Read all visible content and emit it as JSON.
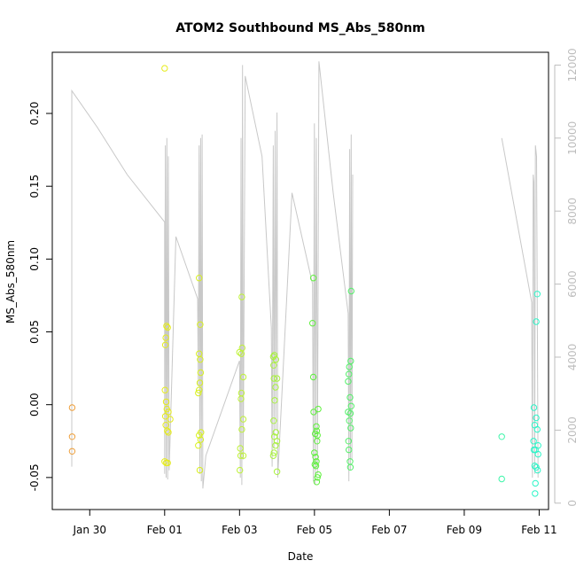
{
  "chart_data": {
    "type": "scatter",
    "title": "ATOM2 Southbound MS_Abs_580nm",
    "xlabel": "Date",
    "ylabel": "MS_Abs_580nm",
    "grid": false,
    "xlim": [
      "Jan 29",
      "Feb 11.25"
    ],
    "ylim": [
      -0.072,
      0.242
    ],
    "y2lim": [
      -175,
      12350
    ],
    "x_ticks": [
      {
        "value": 30,
        "label": "Jan 30"
      },
      {
        "value": 32,
        "label": "Feb 01"
      },
      {
        "value": 34,
        "label": "Feb 03"
      },
      {
        "value": 36,
        "label": "Feb 05"
      },
      {
        "value": 38,
        "label": "Feb 07"
      },
      {
        "value": 40,
        "label": "Feb 09"
      },
      {
        "value": 42,
        "label": "Feb 11"
      }
    ],
    "y_ticks": [
      {
        "value": -0.05,
        "label": "-0.05"
      },
      {
        "value": 0.0,
        "label": "0.00"
      },
      {
        "value": 0.05,
        "label": "0.05"
      },
      {
        "value": 0.1,
        "label": "0.10"
      },
      {
        "value": 0.15,
        "label": "0.15"
      },
      {
        "value": 0.2,
        "label": "0.20"
      }
    ],
    "y2_ticks": [
      {
        "value": 0,
        "label": "0"
      },
      {
        "value": 2000,
        "label": "2000"
      },
      {
        "value": 4000,
        "label": "4000"
      },
      {
        "value": 6000,
        "label": "6000"
      },
      {
        "value": 8000,
        "label": "8000"
      },
      {
        "value": 10000,
        "label": "10000"
      },
      {
        "value": 12000,
        "label": "12000"
      }
    ],
    "colors": {
      "secondary_line": "#c8c8c8",
      "axis": "#000000",
      "secondary_axis": "#bdbdbd",
      "early": "#ff8800",
      "mid": "#d4ff00",
      "late": "#00ffcc"
    },
    "series": [
      {
        "values": [
          {
            "x": 29.53,
            "y": -0.002,
            "color": "#ee9f3a"
          },
          {
            "x": 29.53,
            "y": -0.022,
            "color": "#ee9f3a"
          },
          {
            "x": 29.53,
            "y": -0.032,
            "color": "#ee9f3a"
          },
          {
            "x": 32.0,
            "y": 0.231,
            "color": "#e6ec1c"
          },
          {
            "x": 32.05,
            "y": 0.054,
            "color": "#e6ec1c"
          },
          {
            "x": 32.08,
            "y": 0.053,
            "color": "#e6ec1c"
          },
          {
            "x": 32.03,
            "y": 0.046,
            "color": "#e6ec1c"
          },
          {
            "x": 32.02,
            "y": 0.041,
            "color": "#e6ec1c"
          },
          {
            "x": 32.01,
            "y": 0.01,
            "color": "#e6ec1c"
          },
          {
            "x": 32.04,
            "y": 0.002,
            "color": "#e6ec1c"
          },
          {
            "x": 32.06,
            "y": -0.003,
            "color": "#e6ec1c"
          },
          {
            "x": 32.1,
            "y": -0.005,
            "color": "#e6ec1c"
          },
          {
            "x": 32.02,
            "y": -0.008,
            "color": "#e6ec1c"
          },
          {
            "x": 32.15,
            "y": -0.01,
            "color": "#e6ec1c"
          },
          {
            "x": 32.03,
            "y": -0.014,
            "color": "#e6ec1c"
          },
          {
            "x": 32.07,
            "y": -0.018,
            "color": "#e6ec1c"
          },
          {
            "x": 32.1,
            "y": -0.019,
            "color": "#e6ec1c"
          },
          {
            "x": 32.0,
            "y": -0.039,
            "color": "#e6ec1c"
          },
          {
            "x": 32.04,
            "y": -0.04,
            "color": "#e6ec1c"
          },
          {
            "x": 32.08,
            "y": -0.04,
            "color": "#e6ec1c"
          },
          {
            "x": 32.92,
            "y": 0.087,
            "color": "#d8f01e"
          },
          {
            "x": 32.95,
            "y": 0.055,
            "color": "#d8f01e"
          },
          {
            "x": 32.92,
            "y": 0.035,
            "color": "#d8f01e"
          },
          {
            "x": 32.95,
            "y": 0.031,
            "color": "#d8f01e"
          },
          {
            "x": 32.96,
            "y": 0.022,
            "color": "#d8f01e"
          },
          {
            "x": 32.94,
            "y": 0.015,
            "color": "#d8f01e"
          },
          {
            "x": 32.92,
            "y": 0.01,
            "color": "#d8f01e"
          },
          {
            "x": 32.9,
            "y": 0.008,
            "color": "#d8f01e"
          },
          {
            "x": 32.97,
            "y": -0.019,
            "color": "#d8f01e"
          },
          {
            "x": 32.92,
            "y": -0.021,
            "color": "#d8f01e"
          },
          {
            "x": 32.96,
            "y": -0.024,
            "color": "#d8f01e"
          },
          {
            "x": 32.9,
            "y": -0.028,
            "color": "#d8f01e"
          },
          {
            "x": 32.94,
            "y": -0.045,
            "color": "#d8f01e"
          },
          {
            "x": 34.06,
            "y": 0.074,
            "color": "#bff23a"
          },
          {
            "x": 34.07,
            "y": 0.039,
            "color": "#bff23a"
          },
          {
            "x": 34.0,
            "y": 0.036,
            "color": "#bff23a"
          },
          {
            "x": 34.05,
            "y": 0.035,
            "color": "#bff23a"
          },
          {
            "x": 34.1,
            "y": 0.019,
            "color": "#bff23a"
          },
          {
            "x": 34.05,
            "y": 0.008,
            "color": "#bff23a"
          },
          {
            "x": 34.04,
            "y": 0.004,
            "color": "#bff23a"
          },
          {
            "x": 34.1,
            "y": -0.01,
            "color": "#bff23a"
          },
          {
            "x": 34.06,
            "y": -0.017,
            "color": "#bff23a"
          },
          {
            "x": 34.02,
            "y": -0.03,
            "color": "#bff23a"
          },
          {
            "x": 34.03,
            "y": -0.035,
            "color": "#bff23a"
          },
          {
            "x": 34.1,
            "y": -0.035,
            "color": "#bff23a"
          },
          {
            "x": 34.01,
            "y": -0.045,
            "color": "#bff23a"
          },
          {
            "x": 34.9,
            "y": 0.033,
            "color": "#a8f23d"
          },
          {
            "x": 34.93,
            "y": 0.034,
            "color": "#a8f23d"
          },
          {
            "x": 34.97,
            "y": 0.031,
            "color": "#a8f23d"
          },
          {
            "x": 34.91,
            "y": 0.027,
            "color": "#a8f23d"
          },
          {
            "x": 34.92,
            "y": 0.018,
            "color": "#a8f23d"
          },
          {
            "x": 35.0,
            "y": 0.018,
            "color": "#a8f23d"
          },
          {
            "x": 34.96,
            "y": 0.012,
            "color": "#a8f23d"
          },
          {
            "x": 34.94,
            "y": 0.003,
            "color": "#a8f23d"
          },
          {
            "x": 34.91,
            "y": -0.011,
            "color": "#a8f23d"
          },
          {
            "x": 34.97,
            "y": -0.019,
            "color": "#a8f23d"
          },
          {
            "x": 34.93,
            "y": -0.022,
            "color": "#a8f23d"
          },
          {
            "x": 35.0,
            "y": -0.025,
            "color": "#a8f23d"
          },
          {
            "x": 34.96,
            "y": -0.028,
            "color": "#a8f23d"
          },
          {
            "x": 34.92,
            "y": -0.033,
            "color": "#a8f23d"
          },
          {
            "x": 34.9,
            "y": -0.035,
            "color": "#a8f23d"
          },
          {
            "x": 35.0,
            "y": -0.046,
            "color": "#a8f23d"
          },
          {
            "x": 35.97,
            "y": 0.087,
            "color": "#5ef03c"
          },
          {
            "x": 35.95,
            "y": 0.056,
            "color": "#5ef03c"
          },
          {
            "x": 35.97,
            "y": 0.019,
            "color": "#5ef03c"
          },
          {
            "x": 36.1,
            "y": -0.003,
            "color": "#5ef03c"
          },
          {
            "x": 35.98,
            "y": -0.005,
            "color": "#5ef03c"
          },
          {
            "x": 36.05,
            "y": -0.015,
            "color": "#5ef03c"
          },
          {
            "x": 36.06,
            "y": -0.018,
            "color": "#5ef03c"
          },
          {
            "x": 36.02,
            "y": -0.02,
            "color": "#5ef03c"
          },
          {
            "x": 36.08,
            "y": -0.021,
            "color": "#5ef03c"
          },
          {
            "x": 36.07,
            "y": -0.025,
            "color": "#5ef03c"
          },
          {
            "x": 36.0,
            "y": -0.033,
            "color": "#5ef03c"
          },
          {
            "x": 36.03,
            "y": -0.036,
            "color": "#5ef03c"
          },
          {
            "x": 36.05,
            "y": -0.039,
            "color": "#5ef03c"
          },
          {
            "x": 36.01,
            "y": -0.041,
            "color": "#5ef03c"
          },
          {
            "x": 36.04,
            "y": -0.042,
            "color": "#5ef03c"
          },
          {
            "x": 36.1,
            "y": -0.048,
            "color": "#5ef03c"
          },
          {
            "x": 36.08,
            "y": -0.05,
            "color": "#5ef03c"
          },
          {
            "x": 36.06,
            "y": -0.053,
            "color": "#5ef03c"
          },
          {
            "x": 36.98,
            "y": 0.078,
            "color": "#54f06a"
          },
          {
            "x": 36.97,
            "y": 0.03,
            "color": "#54f06a"
          },
          {
            "x": 36.93,
            "y": 0.026,
            "color": "#54f06a"
          },
          {
            "x": 36.92,
            "y": 0.021,
            "color": "#54f06a"
          },
          {
            "x": 36.9,
            "y": 0.016,
            "color": "#54f06a"
          },
          {
            "x": 36.95,
            "y": 0.005,
            "color": "#54f06a"
          },
          {
            "x": 36.98,
            "y": -0.001,
            "color": "#54f06a"
          },
          {
            "x": 36.9,
            "y": -0.005,
            "color": "#54f06a"
          },
          {
            "x": 36.96,
            "y": -0.006,
            "color": "#54f06a"
          },
          {
            "x": 36.93,
            "y": -0.011,
            "color": "#54f06a"
          },
          {
            "x": 36.97,
            "y": -0.016,
            "color": "#54f06a"
          },
          {
            "x": 36.91,
            "y": -0.025,
            "color": "#54f06a"
          },
          {
            "x": 36.92,
            "y": -0.031,
            "color": "#54f06a"
          },
          {
            "x": 36.95,
            "y": -0.039,
            "color": "#54f06a"
          },
          {
            "x": 36.96,
            "y": -0.043,
            "color": "#54f06a"
          },
          {
            "x": 41.0,
            "y": -0.022,
            "color": "#3df5a9"
          },
          {
            "x": 41.0,
            "y": -0.051,
            "color": "#3df5a9"
          },
          {
            "x": 41.95,
            "y": 0.076,
            "color": "#2df5c8"
          },
          {
            "x": 41.92,
            "y": 0.057,
            "color": "#2df5c8"
          },
          {
            "x": 41.86,
            "y": -0.002,
            "color": "#2df5c8"
          },
          {
            "x": 41.92,
            "y": -0.009,
            "color": "#2df5c8"
          },
          {
            "x": 41.88,
            "y": -0.014,
            "color": "#2df5c8"
          },
          {
            "x": 41.95,
            "y": -0.017,
            "color": "#2df5c8"
          },
          {
            "x": 41.85,
            "y": -0.025,
            "color": "#2df5c8"
          },
          {
            "x": 41.97,
            "y": -0.028,
            "color": "#2df5c8"
          },
          {
            "x": 41.9,
            "y": -0.031,
            "color": "#2df5c8"
          },
          {
            "x": 41.86,
            "y": -0.031,
            "color": "#2df5c8"
          },
          {
            "x": 41.97,
            "y": -0.034,
            "color": "#2df5c8"
          },
          {
            "x": 41.88,
            "y": -0.042,
            "color": "#2df5c8"
          },
          {
            "x": 41.92,
            "y": -0.043,
            "color": "#2df5c8"
          },
          {
            "x": 41.96,
            "y": -0.045,
            "color": "#2df5c8"
          },
          {
            "x": 41.9,
            "y": -0.054,
            "color": "#2df5c8"
          },
          {
            "x": 41.89,
            "y": -0.061,
            "color": "#2df5c8"
          }
        ]
      },
      {
        "axis": "right",
        "style": "line",
        "values": [
          {
            "x": 29.52,
            "y": 1000
          },
          {
            "x": 29.52,
            "y": 11300
          },
          {
            "x": 30.2,
            "y": 10300
          },
          {
            "x": 31.0,
            "y": 9000
          },
          {
            "x": 32.0,
            "y": 7700
          },
          {
            "x": 32.0,
            "y": 800
          },
          {
            "x": 32.02,
            "y": 9800
          },
          {
            "x": 32.04,
            "y": 700
          },
          {
            "x": 32.06,
            "y": 10000
          },
          {
            "x": 32.08,
            "y": 650
          },
          {
            "x": 32.1,
            "y": 9500
          },
          {
            "x": 32.12,
            "y": 900
          },
          {
            "x": 32.3,
            "y": 7300
          },
          {
            "x": 32.88,
            "y": 5600
          },
          {
            "x": 32.9,
            "y": 3200
          },
          {
            "x": 32.92,
            "y": 9800
          },
          {
            "x": 32.94,
            "y": 800
          },
          {
            "x": 32.96,
            "y": 10000
          },
          {
            "x": 32.98,
            "y": 600
          },
          {
            "x": 33.0,
            "y": 10100
          },
          {
            "x": 33.02,
            "y": 400
          },
          {
            "x": 33.1,
            "y": 1300
          },
          {
            "x": 34.0,
            "y": 3900
          },
          {
            "x": 34.02,
            "y": 700
          },
          {
            "x": 34.04,
            "y": 10000
          },
          {
            "x": 34.06,
            "y": 500
          },
          {
            "x": 34.08,
            "y": 12000
          },
          {
            "x": 34.1,
            "y": 1200
          },
          {
            "x": 34.15,
            "y": 11700
          },
          {
            "x": 34.6,
            "y": 9500
          },
          {
            "x": 34.85,
            "y": 4800
          },
          {
            "x": 34.87,
            "y": 1000
          },
          {
            "x": 34.9,
            "y": 9800
          },
          {
            "x": 34.92,
            "y": 1500
          },
          {
            "x": 34.95,
            "y": 10200
          },
          {
            "x": 34.97,
            "y": 2000
          },
          {
            "x": 35.0,
            "y": 10700
          },
          {
            "x": 35.02,
            "y": 700
          },
          {
            "x": 35.4,
            "y": 8500
          },
          {
            "x": 35.95,
            "y": 6000
          },
          {
            "x": 35.97,
            "y": 600
          },
          {
            "x": 36.0,
            "y": 10400
          },
          {
            "x": 36.02,
            "y": 500
          },
          {
            "x": 36.05,
            "y": 10000
          },
          {
            "x": 36.08,
            "y": 800
          },
          {
            "x": 36.12,
            "y": 12100
          },
          {
            "x": 36.5,
            "y": 8500
          },
          {
            "x": 36.9,
            "y": 5200
          },
          {
            "x": 36.92,
            "y": 600
          },
          {
            "x": 36.94,
            "y": 9700
          },
          {
            "x": 36.96,
            "y": 900
          },
          {
            "x": 36.98,
            "y": 10100
          },
          {
            "x": 37.0,
            "y": 1200
          },
          {
            "x": 37.02,
            "y": 9000
          }
        ]
      },
      {
        "axis": "right",
        "style": "line",
        "values": [
          {
            "x": 41.0,
            "y": 10000
          },
          {
            "x": 41.8,
            "y": 5500
          },
          {
            "x": 41.82,
            "y": 700
          },
          {
            "x": 41.84,
            "y": 9000
          },
          {
            "x": 41.86,
            "y": 8800
          },
          {
            "x": 41.88,
            "y": 800
          },
          {
            "x": 41.9,
            "y": 9800
          },
          {
            "x": 41.93,
            "y": 9500
          },
          {
            "x": 41.97,
            "y": 700
          }
        ]
      }
    ]
  }
}
